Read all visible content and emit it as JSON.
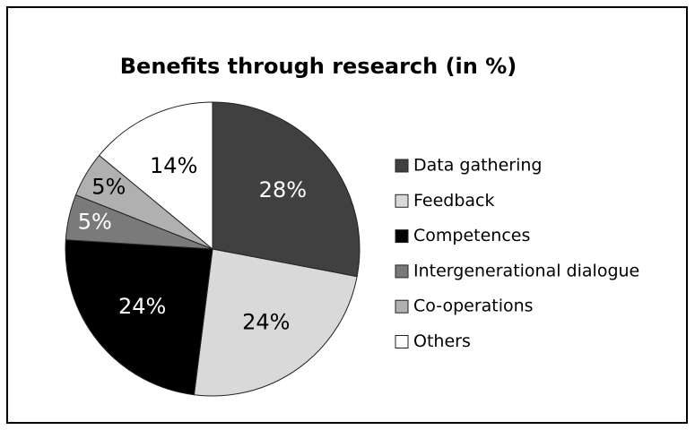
{
  "chart_data": {
    "type": "pie",
    "title": "Benefits through research (in %)",
    "categories": [
      "Data gathering",
      "Feedback",
      "Competences",
      "Intergenerational dialogue",
      "Co-operations",
      "Others"
    ],
    "values": [
      28,
      24,
      24,
      5,
      5,
      14
    ],
    "value_labels": [
      "28%",
      "24%",
      "24%",
      "5%",
      "5%",
      "14%"
    ],
    "colors": [
      "#404040",
      "#d9d9d9",
      "#000000",
      "#7a7a7a",
      "#b0b0b0",
      "#ffffff"
    ],
    "legend": "right"
  }
}
